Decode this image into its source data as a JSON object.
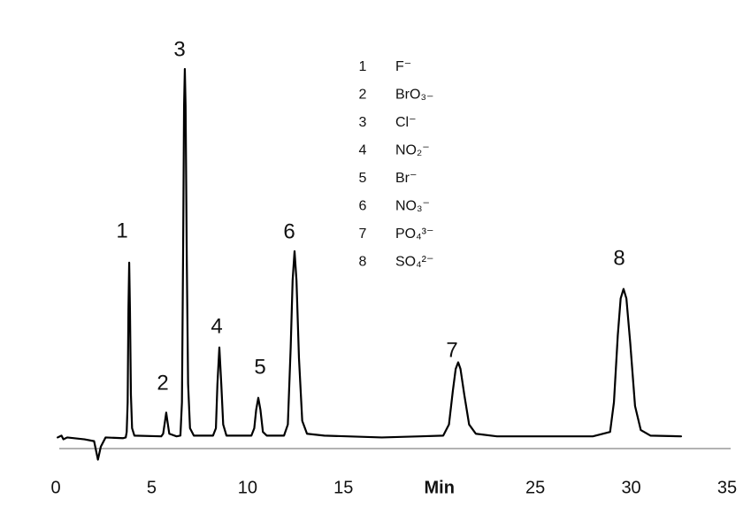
{
  "chart_data": {
    "type": "line",
    "color": "#000000",
    "x": [
      0.1,
      0.3,
      0.4,
      0.6,
      1.5,
      2.0,
      2.2,
      2.35,
      2.6,
      3.5,
      3.65,
      3.7,
      3.75,
      3.79,
      3.83,
      3.87,
      3.92,
      3.98,
      4.1,
      5.5,
      5.6,
      5.7,
      5.76,
      5.82,
      5.92,
      6.3,
      6.5,
      6.58,
      6.64,
      6.69,
      6.73,
      6.77,
      6.83,
      6.9,
      7.0,
      7.2,
      8.2,
      8.35,
      8.43,
      8.53,
      8.63,
      8.73,
      8.9,
      10.2,
      10.35,
      10.45,
      10.56,
      10.67,
      10.8,
      11.0,
      11.9,
      12.1,
      12.25,
      12.35,
      12.45,
      12.55,
      12.68,
      12.85,
      13.1,
      14,
      17,
      19,
      20.2,
      20.5,
      20.7,
      20.85,
      20.98,
      21.1,
      21.3,
      21.55,
      21.9,
      23,
      28,
      28.9,
      29.1,
      29.3,
      29.45,
      29.6,
      29.75,
      29.95,
      30.2,
      30.5,
      31,
      32.6
    ],
    "values": [
      0.5,
      1,
      0,
      0.5,
      0,
      -0.5,
      -5.5,
      -2,
      0.5,
      0.3,
      0.5,
      2,
      10,
      35,
      47.7,
      35,
      12,
      3,
      1,
      0.8,
      1.5,
      5,
      7.2,
      5,
      1.5,
      0.8,
      1,
      10,
      50,
      90,
      100,
      90,
      50,
      15,
      3,
      1,
      1,
      3,
      15,
      24.8,
      15,
      4,
      1,
      1,
      3,
      8,
      11.2,
      8,
      2,
      1,
      1,
      4,
      25,
      43,
      50.8,
      43,
      22,
      5,
      1.5,
      1,
      0.5,
      0.8,
      1,
      4,
      13,
      19,
      20.8,
      19,
      12,
      4,
      1.5,
      0.8,
      0.8,
      2,
      10,
      28,
      38,
      40.6,
      38,
      26,
      9,
      2.5,
      1,
      0.8
    ],
    "xlim": [
      0,
      35
    ],
    "ylim": [
      -2.5,
      100
    ],
    "xticks": [
      0,
      5,
      10,
      15,
      {
        "value": 20,
        "label": "Min"
      },
      25,
      30,
      35
    ],
    "grid": false,
    "peak_labels": [
      "1",
      "2",
      "3",
      "4",
      "5",
      "6",
      "7",
      "8"
    ],
    "legend": [
      {
        "number": "1",
        "ion": "F⁻"
      },
      {
        "number": "2",
        "ion": "BrO₃₋"
      },
      {
        "number": "3",
        "ion": "Cl⁻"
      },
      {
        "number": "4",
        "ion": "NO₂⁻"
      },
      {
        "number": "5",
        "ion": "Br⁻"
      },
      {
        "number": "6",
        "ion": "NO₃⁻"
      },
      {
        "number": "7",
        "ion": "PO₄³⁻"
      },
      {
        "number": "8",
        "ion": "SO₄²⁻"
      }
    ]
  }
}
